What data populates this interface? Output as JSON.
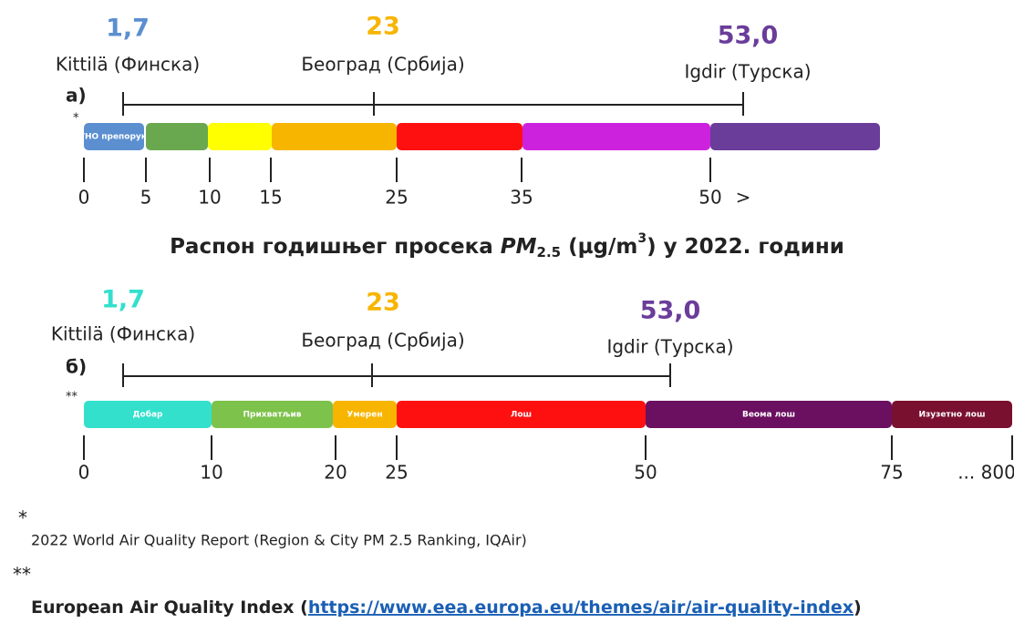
{
  "panel_a": {
    "label": "а)",
    "marker": "*",
    "annotations": [
      {
        "value": "1,7",
        "place": "Kittilä (Финска)"
      },
      {
        "value": "23",
        "place": "Београд (Србија)"
      },
      {
        "value": "53,0",
        "place": "Igdir (Турска)"
      }
    ],
    "segments": [
      "WHO препорука",
      null,
      null,
      null,
      null,
      null,
      null
    ],
    "ticks": [
      "0",
      "5",
      "10",
      "15",
      "25",
      "35",
      "50",
      ">"
    ]
  },
  "title": {
    "text": "Распон годишњег просека ",
    "pm": "PM",
    "sub": "2.5",
    "unit": " (µg/m",
    "sup": "3",
    "rest": ") у 2022. години"
  },
  "panel_b": {
    "label": "б)",
    "marker": "**",
    "annotations": [
      {
        "value": "1,7",
        "place": "Kittilä (Финска)"
      },
      {
        "value": "23",
        "place": "Београд (Србија)"
      },
      {
        "value": "53,0",
        "place": "Igdir (Турска)"
      }
    ],
    "segments": [
      "Добар",
      "Прихватљив",
      "Умерен",
      "Лош",
      "Веома лош",
      "Изузетно лош"
    ],
    "ticks": [
      "0",
      "10",
      "20",
      "25",
      "50",
      "75",
      "... 800"
    ]
  },
  "footnotes": [
    {
      "marker": "*",
      "text": "2022 World Air Quality Report (Region & City PM 2.5 Ranking, IQAir)"
    },
    {
      "marker": "**",
      "text": "European Air Quality Index (",
      "link": "https://www.eea.europa.eu/themes/air/air-quality-index",
      "end": ")"
    }
  ]
}
